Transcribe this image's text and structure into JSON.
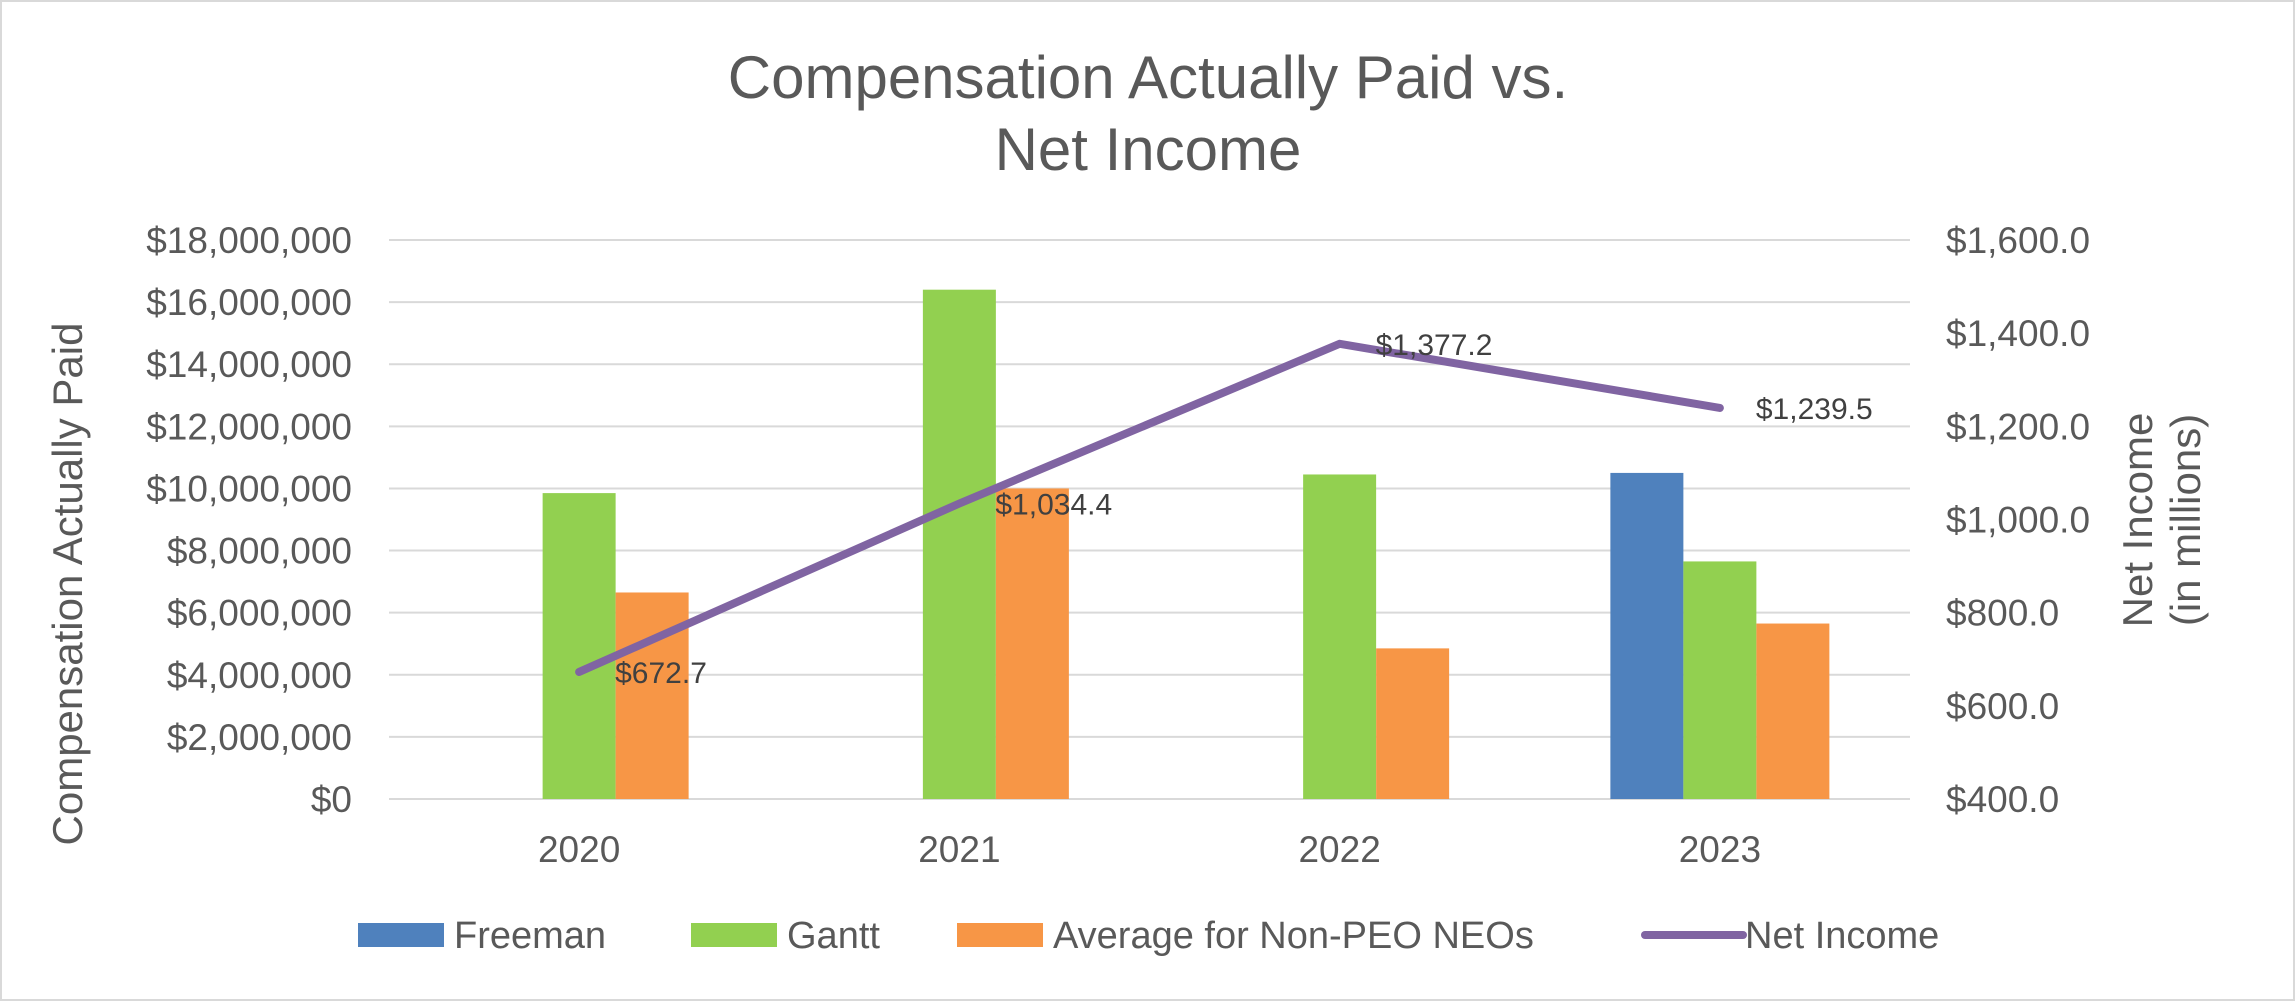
{
  "chart_data": {
    "type": "bar",
    "title": "Compensation Actually Paid vs.",
    "title_line2": "Net Income",
    "categories": [
      "2020",
      "2021",
      "2022",
      "2023"
    ],
    "series": [
      {
        "name": "Freeman",
        "color": "#4f81bd",
        "values": [
          null,
          null,
          null,
          10500000
        ]
      },
      {
        "name": "Gantt",
        "color": "#92d050",
        "values": [
          9850000,
          16400000,
          10450000,
          7650000
        ]
      },
      {
        "name": "Average for Non-PEO NEOs",
        "color": "#f79646",
        "values": [
          6650000,
          10000000,
          4850000,
          5650000
        ]
      }
    ],
    "line_series": {
      "name": "Net Income",
      "color": "#8064a2",
      "axis": "secondary",
      "values": [
        672.7,
        1034.4,
        1377.2,
        1239.5
      ],
      "labels": [
        "$672.7",
        "$1,034.4",
        "$1,377.2",
        "$1,239.5"
      ]
    },
    "ylabel": "Compensation Actually Paid",
    "y2label_line1": "Net Income",
    "y2label_line2": "(in millions)",
    "ylim": [
      0,
      18000000
    ],
    "y2lim": [
      400,
      1600
    ],
    "yticks": [
      "$0",
      "$2,000,000",
      "$4,000,000",
      "$6,000,000",
      "$8,000,000",
      "$10,000,000",
      "$12,000,000",
      "$14,000,000",
      "$16,000,000",
      "$18,000,000"
    ],
    "y2ticks": [
      "$400.0",
      "$600.0",
      "$800.0",
      "$1,000.0",
      "$1,200.0",
      "$1,400.0",
      "$1,600.0"
    ],
    "grid": true,
    "legend_position": "bottom"
  }
}
